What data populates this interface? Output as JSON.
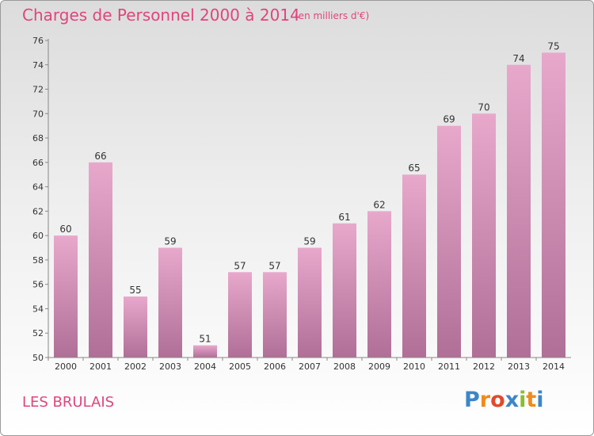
{
  "title": "Charges de Personnel 2000 à 2014",
  "subtitle": "(en milliers d'€)",
  "commune": "LES BRULAIS",
  "logo": {
    "letters": [
      "P",
      "r",
      "o",
      "x",
      "i",
      "t",
      "i"
    ],
    "colors": [
      "#3d86c6",
      "#f08a1c",
      "#e14a2b",
      "#3d86c6",
      "#8bbd2e",
      "#f08a1c",
      "#3d86c6"
    ]
  },
  "colors": {
    "accent": "#e0457d",
    "bar_top": "#e8a8cc",
    "bar_bottom": "#b06f97",
    "text": "#333333"
  },
  "chart_data": {
    "type": "bar",
    "categories": [
      "2000",
      "2001",
      "2002",
      "2003",
      "2004",
      "2005",
      "2006",
      "2007",
      "2008",
      "2009",
      "2010",
      "2011",
      "2012",
      "2013",
      "2014"
    ],
    "values": [
      60,
      66,
      55,
      59,
      51,
      57,
      57,
      59,
      61,
      62,
      65,
      69,
      70,
      74,
      75
    ],
    "data_labels": [
      "60",
      "66",
      "55",
      "59",
      "51",
      "57",
      "57",
      "59",
      "61",
      "62",
      "65",
      "69",
      "70",
      "74",
      "75"
    ],
    "yticks": [
      "50",
      "52",
      "54",
      "56",
      "58",
      "60",
      "62",
      "64",
      "66",
      "68",
      "70",
      "72",
      "74",
      "76"
    ],
    "ylim": [
      50,
      76
    ],
    "title": "Charges de Personnel 2000 à 2014",
    "xlabel": "",
    "ylabel": "",
    "grid": false,
    "legend": "none"
  }
}
